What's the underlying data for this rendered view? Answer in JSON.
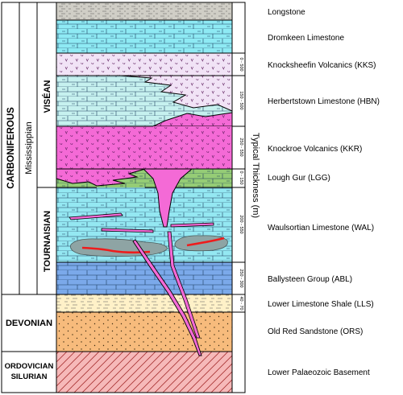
{
  "periods": {
    "carboniferous": "CARBONIFEROUS",
    "mississippian": "Mississippian",
    "visean": "VISÉAN",
    "tournaisian": "TOURNAISIAN",
    "devonian": "DEVONIAN",
    "ordovician": "ORDOVICIAN",
    "silurian": "SILURIAN"
  },
  "thickness_axis_label": "Typical Thickness (m)",
  "units": [
    {
      "name": "Longstone",
      "thickness": ""
    },
    {
      "name": "Dromkeen Limestone",
      "thickness": ""
    },
    {
      "name": "Knocksheefin Volcanics (KKS)",
      "thickness": "0 - 500"
    },
    {
      "name": "Herbertstown Limestone (HBN)",
      "thickness": "150 - 500"
    },
    {
      "name": "Knockroe Volcanics (KKR)",
      "thickness": "250 - 550"
    },
    {
      "name": "Lough Gur (LGG)",
      "thickness": "0 - 150"
    },
    {
      "name": "Waulsortian Limestone (WAL)",
      "thickness": "200 - 550"
    },
    {
      "name": "Ballysteen Group (ABL)",
      "thickness": "250 - 300"
    },
    {
      "name": "Lower Limestone Shale (LLS)",
      "thickness": "40 - 70"
    },
    {
      "name": "Old Red Sandstone (ORS)",
      "thickness": ""
    },
    {
      "name": "Lower Palaeozoic Basement",
      "thickness": ""
    }
  ],
  "colors": {
    "longstone": "#d0cec6",
    "dromkeen": "#8eeaf4",
    "kks": "#f1e3f6",
    "hbn": "#c6f1ef",
    "kkr": "#f46ad6",
    "lgg": "#95cc76",
    "wal": "#94e8f2",
    "abl": "#7ba9ea",
    "lls": "#fff1c8",
    "ors": "#f7bb7c",
    "basement": "#f6b9b9",
    "intrusion": "#f46ad6",
    "mudmound": "#8ea4a4",
    "mineral": "#ee1c1c"
  }
}
